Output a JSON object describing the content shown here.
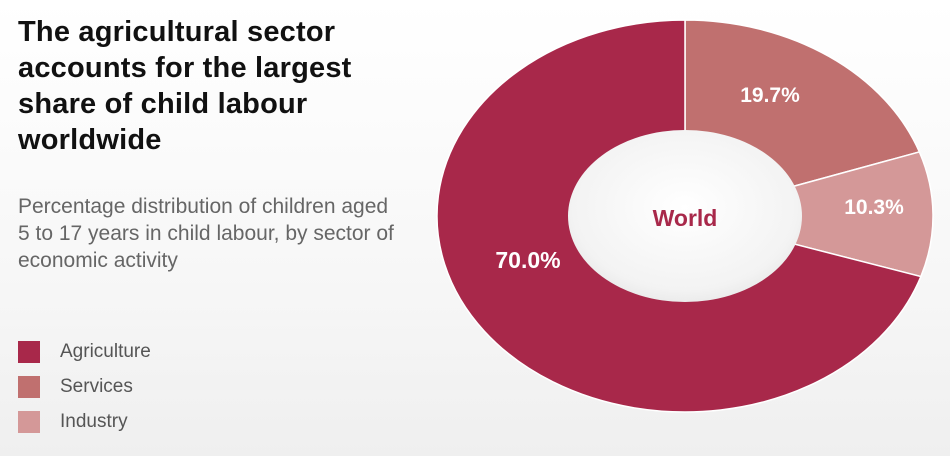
{
  "chart_data": {
    "type": "pie",
    "title": "The agricultural sector accounts for the largest share of child labour worldwide",
    "subtitle": "Percentage distribution of children aged 5 to 17 years in child labour, by sector of economic activity",
    "center_label": "World",
    "slices": [
      {
        "name": "Services",
        "value": 19.7,
        "label": "19.7%",
        "color": "#c0706f"
      },
      {
        "name": "Industry",
        "value": 10.3,
        "label": "10.3%",
        "color": "#d49898"
      },
      {
        "name": "Agriculture",
        "value": 70.0,
        "label": "70.0%",
        "color": "#a8284a"
      }
    ],
    "legend": [
      {
        "name": "Agriculture",
        "color": "#a8284a"
      },
      {
        "name": "Services",
        "color": "#c0706f"
      },
      {
        "name": "Industry",
        "color": "#d49898"
      }
    ],
    "center_label_color": "#a8284a"
  }
}
